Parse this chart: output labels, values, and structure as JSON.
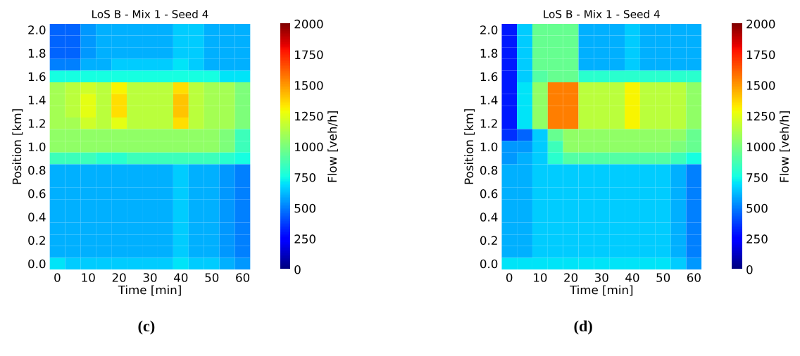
{
  "chart_data": [
    {
      "type": "heatmap",
      "title": "LoS B - Mix 1 - Seed 4",
      "xlabel": "Time [min]",
      "ylabel": "Position [km]",
      "clabel": "Flow [veh/h]",
      "annotations": [
        "(c)"
      ],
      "categories": [
        "0",
        null,
        "10",
        null,
        "20",
        null,
        "30",
        null,
        "40",
        null,
        "50",
        null,
        "60"
      ],
      "y_categories": [
        "2.0",
        null,
        "1.8",
        null,
        "1.6",
        null,
        "1.4",
        null,
        "1.2",
        null,
        "1.0",
        null,
        "0.8",
        null,
        "0.6",
        null,
        "0.4",
        null,
        "0.2",
        null,
        "0.0"
      ],
      "cells": [
        [
          450,
          450,
          550,
          600,
          600,
          600,
          600,
          600,
          650,
          650,
          600,
          600,
          600
        ],
        [
          450,
          450,
          550,
          600,
          600,
          600,
          600,
          600,
          650,
          650,
          600,
          600,
          600
        ],
        [
          450,
          450,
          550,
          600,
          600,
          600,
          600,
          600,
          650,
          650,
          600,
          600,
          600
        ],
        [
          500,
          500,
          600,
          600,
          650,
          650,
          650,
          650,
          700,
          650,
          600,
          600,
          600
        ],
        [
          750,
          750,
          750,
          750,
          750,
          750,
          750,
          750,
          750,
          750,
          750,
          700,
          700
        ],
        [
          1100,
          1150,
          1200,
          1150,
          1300,
          1150,
          1150,
          1150,
          1350,
          1150,
          1100,
          1100,
          1000
        ],
        [
          1100,
          1150,
          1250,
          1150,
          1350,
          1150,
          1150,
          1150,
          1400,
          1150,
          1100,
          1100,
          1000
        ],
        [
          1100,
          1150,
          1250,
          1150,
          1350,
          1150,
          1150,
          1150,
          1400,
          1150,
          1100,
          1100,
          1000
        ],
        [
          1100,
          1100,
          1200,
          1150,
          1250,
          1150,
          1150,
          1150,
          1350,
          1150,
          1100,
          1100,
          1000
        ],
        [
          1050,
          1050,
          1050,
          1050,
          1050,
          1050,
          1050,
          1050,
          1050,
          1050,
          1050,
          1000,
          850
        ],
        [
          1050,
          1050,
          1050,
          1050,
          1050,
          1050,
          1050,
          1050,
          1050,
          1050,
          1050,
          1000,
          850
        ],
        [
          850,
          850,
          850,
          800,
          800,
          850,
          850,
          850,
          850,
          850,
          850,
          800,
          750
        ],
        [
          600,
          600,
          600,
          600,
          600,
          600,
          600,
          600,
          650,
          600,
          600,
          550,
          500
        ],
        [
          600,
          600,
          600,
          600,
          600,
          600,
          600,
          600,
          650,
          600,
          600,
          550,
          500
        ],
        [
          600,
          600,
          600,
          600,
          600,
          600,
          600,
          600,
          650,
          600,
          600,
          550,
          500
        ],
        [
          600,
          600,
          600,
          600,
          600,
          600,
          600,
          600,
          650,
          600,
          600,
          550,
          500
        ],
        [
          600,
          600,
          600,
          600,
          600,
          600,
          600,
          600,
          650,
          600,
          600,
          550,
          500
        ],
        [
          600,
          600,
          600,
          600,
          600,
          600,
          600,
          600,
          650,
          600,
          600,
          550,
          500
        ],
        [
          600,
          600,
          600,
          600,
          600,
          600,
          600,
          600,
          650,
          600,
          600,
          550,
          500
        ],
        [
          600,
          600,
          600,
          600,
          600,
          600,
          600,
          600,
          650,
          600,
          600,
          550,
          500
        ],
        [
          700,
          650,
          650,
          650,
          650,
          650,
          650,
          650,
          700,
          650,
          650,
          600,
          550
        ]
      ],
      "clim": [
        0,
        2000
      ],
      "cticks": [
        0,
        250,
        500,
        750,
        1000,
        1250,
        1500,
        1750,
        2000
      ]
    },
    {
      "type": "heatmap",
      "title": "LoS B - Mix 1 - Seed 4",
      "xlabel": "Time [min]",
      "ylabel": "Position [km]",
      "clabel": "Flow [veh/h]",
      "annotations": [
        "(d)"
      ],
      "categories": [
        "0",
        null,
        "10",
        null,
        "20",
        null,
        "30",
        null,
        "40",
        null,
        "50",
        null,
        "60"
      ],
      "y_categories": [
        "2.0",
        null,
        "1.8",
        null,
        "1.6",
        null,
        "1.4",
        null,
        "1.2",
        null,
        "1.0",
        null,
        "0.8",
        null,
        "0.6",
        null,
        "0.4",
        null,
        "0.2",
        null,
        "0.0"
      ],
      "cells": [
        [
          300,
          650,
          950,
          950,
          950,
          600,
          600,
          600,
          650,
          600,
          600,
          600,
          600
        ],
        [
          300,
          650,
          950,
          950,
          950,
          600,
          600,
          600,
          650,
          600,
          600,
          600,
          600
        ],
        [
          300,
          650,
          950,
          950,
          950,
          600,
          600,
          600,
          650,
          600,
          600,
          600,
          600
        ],
        [
          300,
          650,
          950,
          950,
          950,
          600,
          600,
          600,
          650,
          600,
          600,
          600,
          600
        ],
        [
          300,
          650,
          900,
          950,
          950,
          800,
          800,
          800,
          800,
          800,
          800,
          800,
          800
        ],
        [
          300,
          700,
          1050,
          1550,
          1550,
          1150,
          1150,
          1150,
          1300,
          1150,
          1150,
          1150,
          1050
        ],
        [
          300,
          700,
          1050,
          1550,
          1550,
          1150,
          1150,
          1150,
          1300,
          1150,
          1150,
          1150,
          1050
        ],
        [
          300,
          700,
          1050,
          1550,
          1550,
          1150,
          1150,
          1150,
          1300,
          1150,
          1150,
          1150,
          1050
        ],
        [
          300,
          700,
          1050,
          1550,
          1550,
          1150,
          1150,
          1150,
          1300,
          1150,
          1150,
          1150,
          1050
        ],
        [
          350,
          450,
          650,
          950,
          1050,
          1050,
          1050,
          1050,
          1050,
          1050,
          1050,
          1050,
          950
        ],
        [
          550,
          550,
          650,
          850,
          1050,
          1050,
          1050,
          1050,
          1050,
          1050,
          1050,
          1000,
          950
        ],
        [
          550,
          600,
          650,
          800,
          900,
          900,
          900,
          900,
          900,
          900,
          900,
          850,
          750
        ],
        [
          600,
          600,
          650,
          650,
          650,
          650,
          650,
          650,
          650,
          650,
          650,
          600,
          500
        ],
        [
          600,
          600,
          650,
          650,
          650,
          650,
          650,
          650,
          650,
          650,
          650,
          600,
          500
        ],
        [
          600,
          600,
          650,
          650,
          650,
          650,
          650,
          650,
          650,
          650,
          650,
          600,
          500
        ],
        [
          600,
          600,
          650,
          650,
          650,
          650,
          650,
          650,
          650,
          650,
          650,
          600,
          500
        ],
        [
          600,
          600,
          650,
          650,
          650,
          650,
          650,
          650,
          650,
          650,
          650,
          600,
          500
        ],
        [
          600,
          600,
          650,
          650,
          650,
          650,
          650,
          650,
          650,
          650,
          650,
          600,
          500
        ],
        [
          600,
          600,
          650,
          650,
          650,
          650,
          650,
          650,
          650,
          650,
          650,
          600,
          500
        ],
        [
          600,
          600,
          650,
          650,
          650,
          650,
          650,
          650,
          650,
          650,
          650,
          600,
          500
        ],
        [
          700,
          700,
          700,
          700,
          700,
          700,
          700,
          700,
          700,
          700,
          700,
          650,
          550
        ]
      ],
      "clim": [
        0,
        2000
      ],
      "cticks": [
        0,
        250,
        500,
        750,
        1000,
        1250,
        1500,
        1750,
        2000
      ]
    }
  ]
}
